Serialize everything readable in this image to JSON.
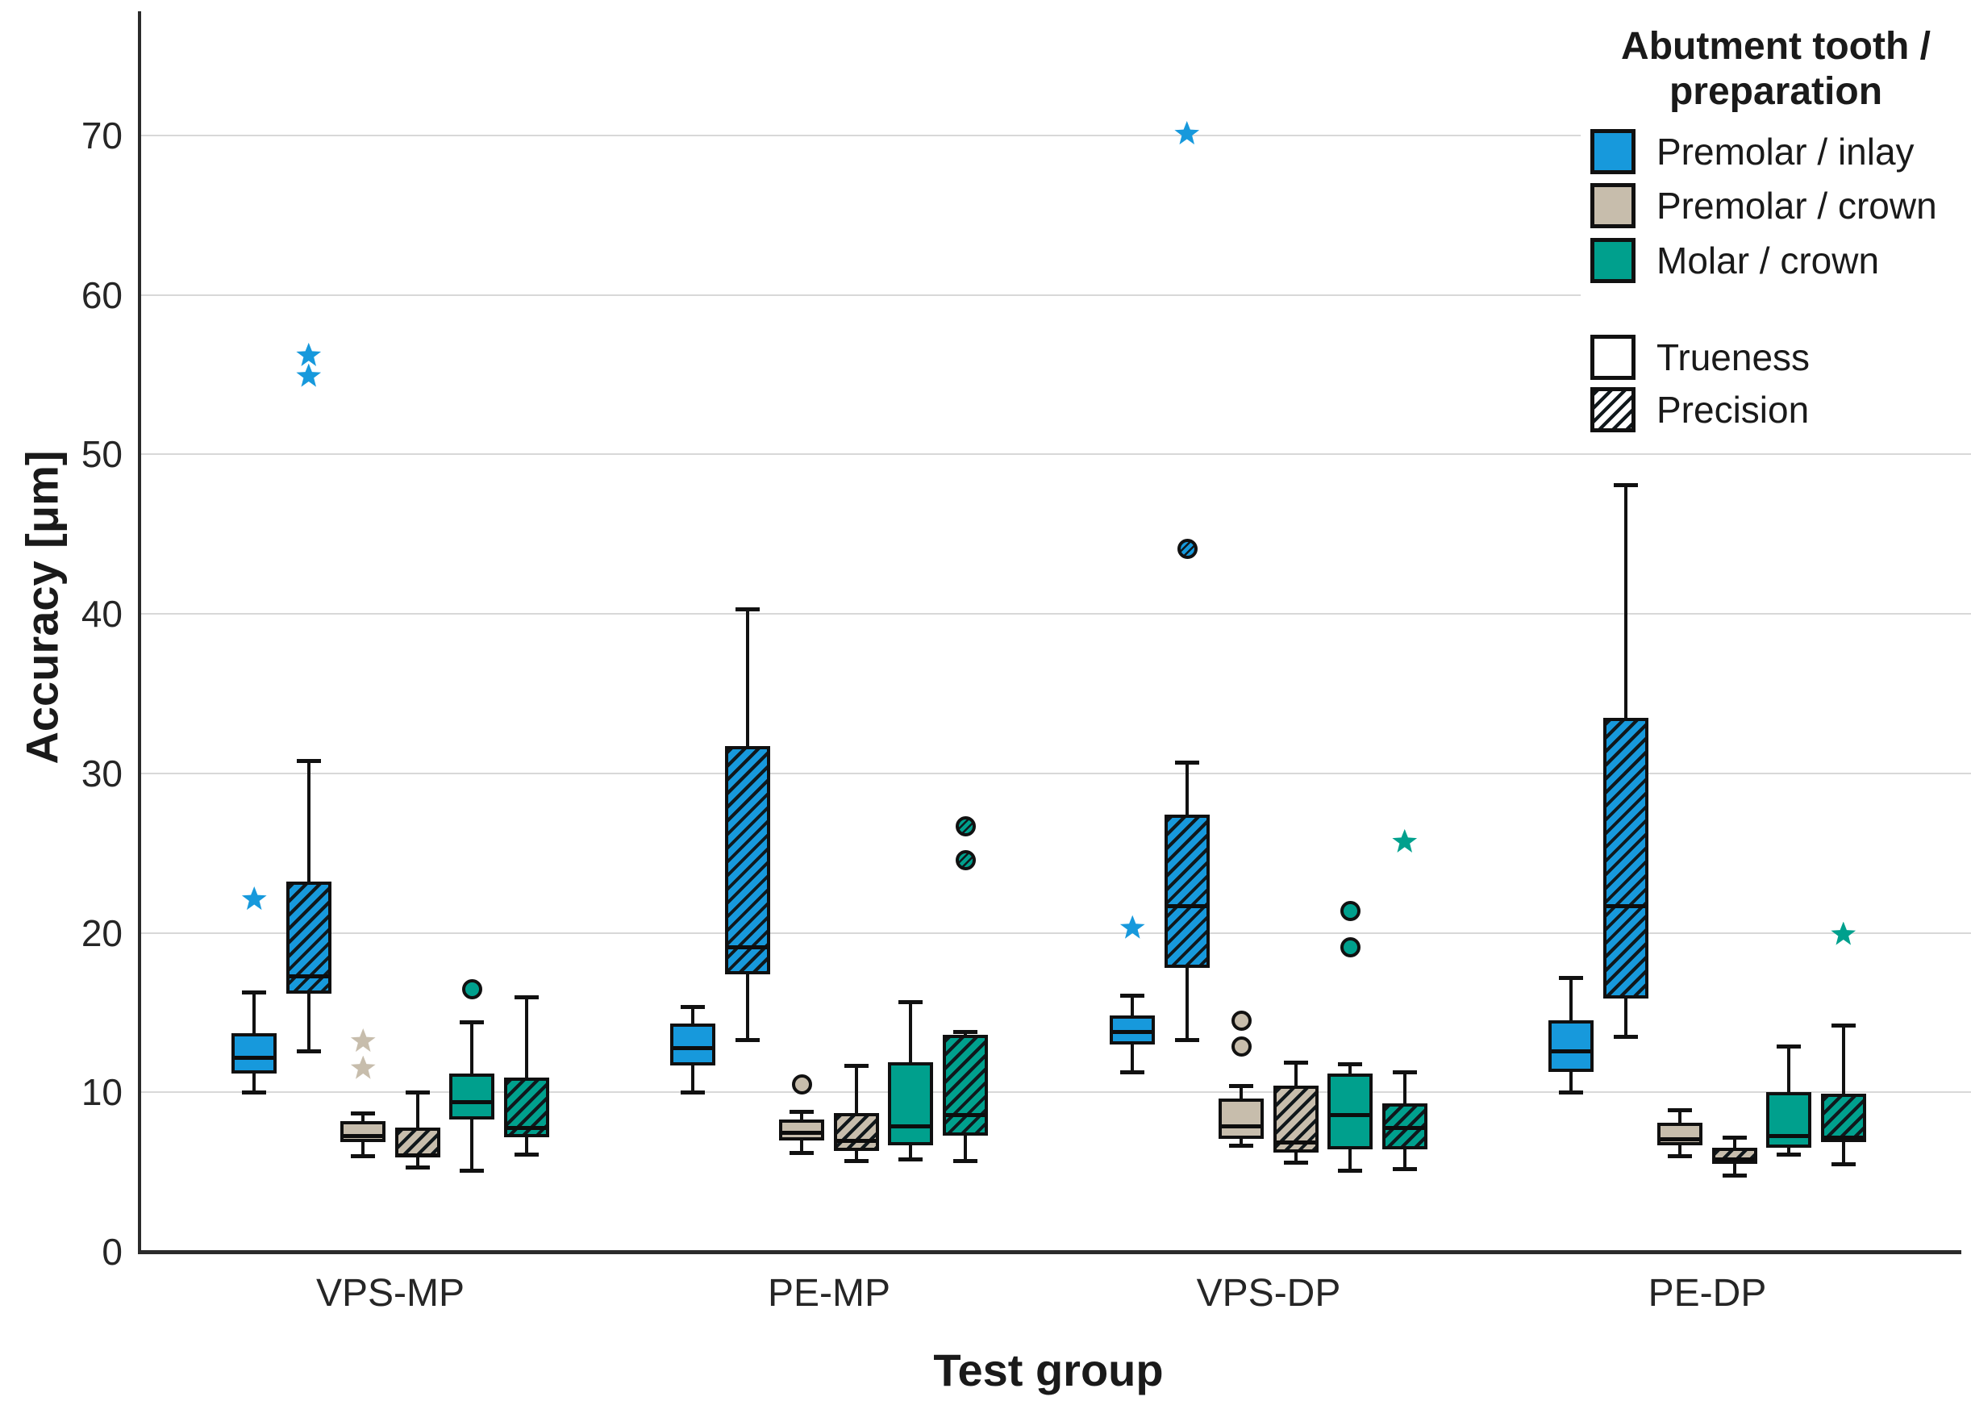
{
  "chart_data": {
    "type": "boxplot",
    "title": "",
    "xlabel": "Test group",
    "ylabel": "Accuracy [μm]",
    "ylim": [
      0,
      77.5
    ],
    "yticks": [
      0,
      10,
      20,
      30,
      40,
      50,
      60,
      70
    ],
    "grid": "horizontal",
    "legend_position": "top-right",
    "groups": [
      "VPS-MP",
      "PE-MP",
      "VPS-DP",
      "PE-DP"
    ],
    "legend": {
      "title_line1": "Abutment tooth /",
      "title_line2": "preparation",
      "color_items": [
        {
          "label": "Premolar / inlay",
          "color": "#1799DC"
        },
        {
          "label": "Premolar / crown",
          "color": "#C7BDAC"
        },
        {
          "label": "Molar / crown",
          "color": "#00A08D"
        }
      ],
      "pattern_items": [
        {
          "label": "Trueness",
          "pattern": "solid"
        },
        {
          "label": "Precision",
          "pattern": "hatched"
        }
      ]
    },
    "series": [
      {
        "name": "Premolar / inlay - Trueness",
        "color": "#1799DC",
        "hatched": false,
        "boxes": [
          {
            "group": "VPS-MP",
            "whisker_low": 10.0,
            "q1": 11.2,
            "median": 12.4,
            "q3": 13.7,
            "whisker_high": 16.3,
            "outliers": [
              {
                "value": 22.1,
                "marker": "star"
              }
            ]
          },
          {
            "group": "PE-MP",
            "whisker_low": 10.0,
            "q1": 11.7,
            "median": 13.0,
            "q3": 14.3,
            "whisker_high": 15.4,
            "outliers": []
          },
          {
            "group": "VPS-DP",
            "whisker_low": 11.3,
            "q1": 13.0,
            "median": 14.0,
            "q3": 14.8,
            "whisker_high": 16.1,
            "outliers": [
              {
                "value": 20.3,
                "marker": "star"
              }
            ]
          },
          {
            "group": "PE-DP",
            "whisker_low": 10.0,
            "q1": 11.3,
            "median": 12.8,
            "q3": 14.5,
            "whisker_high": 17.2,
            "outliers": []
          }
        ]
      },
      {
        "name": "Premolar / inlay - Precision",
        "color": "#1799DC",
        "hatched": true,
        "boxes": [
          {
            "group": "VPS-MP",
            "whisker_low": 12.6,
            "q1": 16.2,
            "median": 17.5,
            "q3": 23.2,
            "whisker_high": 30.8,
            "outliers": [
              {
                "value": 54.9,
                "marker": "star"
              },
              {
                "value": 56.2,
                "marker": "star"
              }
            ]
          },
          {
            "group": "PE-MP",
            "whisker_low": 13.3,
            "q1": 17.4,
            "median": 19.3,
            "q3": 31.7,
            "whisker_high": 40.3,
            "outliers": []
          },
          {
            "group": "VPS-DP",
            "whisker_low": 13.3,
            "q1": 17.8,
            "median": 21.9,
            "q3": 27.4,
            "whisker_high": 30.7,
            "outliers": [
              {
                "value": 44.1,
                "marker": "circle"
              },
              {
                "value": 70.1,
                "marker": "star"
              }
            ]
          },
          {
            "group": "PE-DP",
            "whisker_low": 13.5,
            "q1": 15.9,
            "median": 21.9,
            "q3": 33.5,
            "whisker_high": 48.1,
            "outliers": []
          }
        ]
      },
      {
        "name": "Premolar / crown - Trueness",
        "color": "#C7BDAC",
        "hatched": false,
        "boxes": [
          {
            "group": "VPS-MP",
            "whisker_low": 6.0,
            "q1": 6.9,
            "median": 7.5,
            "q3": 8.2,
            "whisker_high": 8.7,
            "outliers": [
              {
                "value": 11.5,
                "marker": "star"
              },
              {
                "value": 13.2,
                "marker": "star"
              }
            ]
          },
          {
            "group": "PE-MP",
            "whisker_low": 6.2,
            "q1": 7.0,
            "median": 7.7,
            "q3": 8.3,
            "whisker_high": 8.8,
            "outliers": [
              {
                "value": 10.5,
                "marker": "circle"
              }
            ]
          },
          {
            "group": "VPS-DP",
            "whisker_low": 6.7,
            "q1": 7.1,
            "median": 8.1,
            "q3": 9.6,
            "whisker_high": 10.4,
            "outliers": [
              {
                "value": 12.9,
                "marker": "circle"
              },
              {
                "value": 14.5,
                "marker": "circle"
              }
            ]
          },
          {
            "group": "PE-DP",
            "whisker_low": 6.0,
            "q1": 6.7,
            "median": 7.3,
            "q3": 8.1,
            "whisker_high": 8.9,
            "outliers": []
          }
        ]
      },
      {
        "name": "Premolar / crown - Precision",
        "color": "#C7BDAC",
        "hatched": true,
        "boxes": [
          {
            "group": "VPS-MP",
            "whisker_low": 5.3,
            "q1": 5.9,
            "median": 6.2,
            "q3": 7.8,
            "whisker_high": 10.0,
            "outliers": []
          },
          {
            "group": "PE-MP",
            "whisker_low": 5.7,
            "q1": 6.3,
            "median": 7.2,
            "q3": 8.7,
            "whisker_high": 11.7,
            "outliers": []
          },
          {
            "group": "VPS-DP",
            "whisker_low": 5.6,
            "q1": 6.2,
            "median": 7.1,
            "q3": 10.4,
            "whisker_high": 11.9,
            "outliers": []
          },
          {
            "group": "PE-DP",
            "whisker_low": 4.8,
            "q1": 5.5,
            "median": 6.0,
            "q3": 6.5,
            "whisker_high": 7.2,
            "outliers": []
          }
        ]
      },
      {
        "name": "Molar / crown - Trueness",
        "color": "#00A08D",
        "hatched": false,
        "boxes": [
          {
            "group": "VPS-MP",
            "whisker_low": 5.1,
            "q1": 8.3,
            "median": 9.6,
            "q3": 11.2,
            "whisker_high": 14.4,
            "outliers": [
              {
                "value": 16.5,
                "marker": "circle"
              }
            ]
          },
          {
            "group": "PE-MP",
            "whisker_low": 5.8,
            "q1": 6.7,
            "median": 8.1,
            "q3": 11.9,
            "whisker_high": 15.7,
            "outliers": []
          },
          {
            "group": "VPS-DP",
            "whisker_low": 5.1,
            "q1": 6.4,
            "median": 8.8,
            "q3": 11.2,
            "whisker_high": 11.8,
            "outliers": [
              {
                "value": 19.1,
                "marker": "circle"
              },
              {
                "value": 21.4,
                "marker": "circle"
              }
            ]
          },
          {
            "group": "PE-DP",
            "whisker_low": 6.1,
            "q1": 6.5,
            "median": 7.5,
            "q3": 10.0,
            "whisker_high": 12.9,
            "outliers": []
          }
        ]
      },
      {
        "name": "Molar / crown - Precision",
        "color": "#00A08D",
        "hatched": true,
        "boxes": [
          {
            "group": "VPS-MP",
            "whisker_low": 6.1,
            "q1": 7.2,
            "median": 8.0,
            "q3": 10.9,
            "whisker_high": 16.0,
            "outliers": []
          },
          {
            "group": "PE-MP",
            "whisker_low": 5.7,
            "q1": 7.3,
            "median": 8.8,
            "q3": 13.6,
            "whisker_high": 13.8,
            "outliers": [
              {
                "value": 24.6,
                "marker": "circle"
              },
              {
                "value": 26.7,
                "marker": "circle"
              }
            ]
          },
          {
            "group": "VPS-DP",
            "whisker_low": 5.2,
            "q1": 6.4,
            "median": 8.0,
            "q3": 9.3,
            "whisker_high": 11.3,
            "outliers": [
              {
                "value": 25.7,
                "marker": "star"
              }
            ]
          },
          {
            "group": "PE-DP",
            "whisker_low": 5.5,
            "q1": 6.9,
            "median": 7.4,
            "q3": 9.9,
            "whisker_high": 14.2,
            "outliers": [
              {
                "value": 19.9,
                "marker": "star"
              }
            ]
          }
        ]
      }
    ]
  }
}
